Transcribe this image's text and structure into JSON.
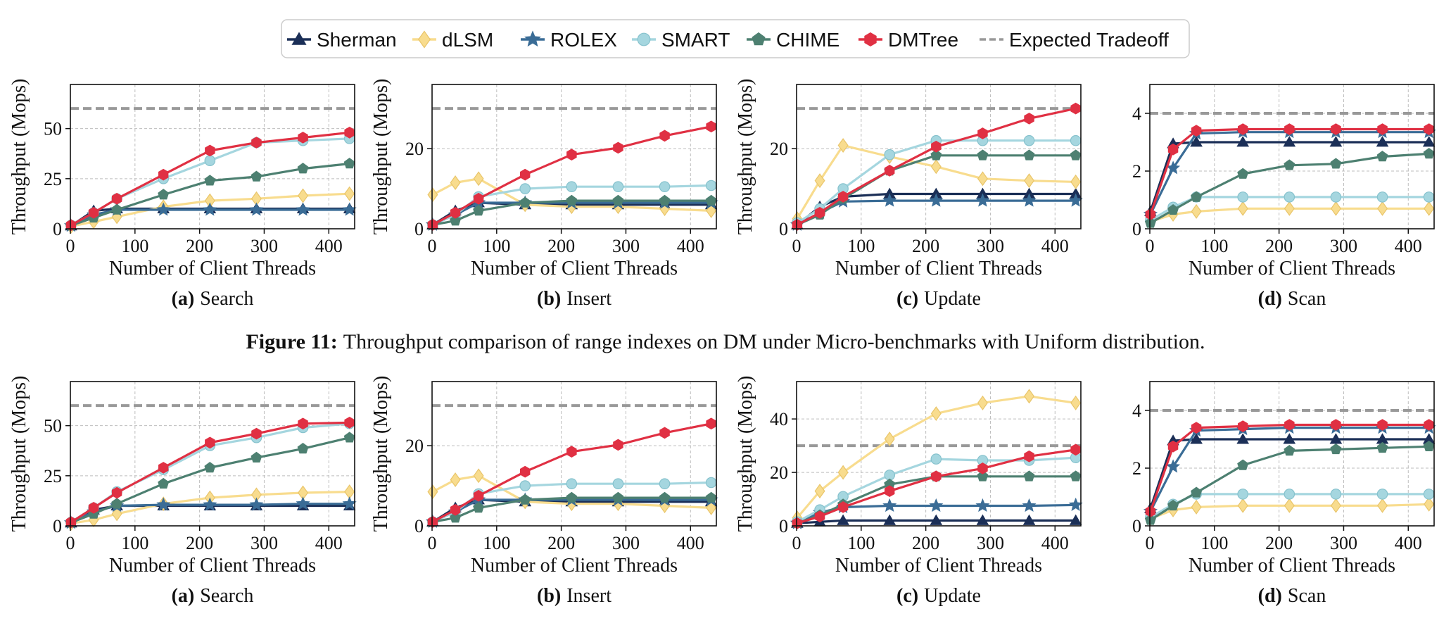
{
  "legend": {
    "items": [
      {
        "name": "Sherman",
        "color": "#1b2f57",
        "marker": "triangle"
      },
      {
        "name": "dLSM",
        "color": "#f8dc8e",
        "marker": "diamond"
      },
      {
        "name": "ROLEX",
        "color": "#3a6c96",
        "marker": "star"
      },
      {
        "name": "SMART",
        "color": "#a5d6df",
        "marker": "circle"
      },
      {
        "name": "CHIME",
        "color": "#4d8071",
        "marker": "pentagon"
      },
      {
        "name": "DMTree",
        "color": "#e03043",
        "marker": "hexagon"
      }
    ],
    "expected": {
      "name": "Expected Tradeoff",
      "color": "#999999"
    }
  },
  "figure_caption": {
    "label": "Figure 11:",
    "text": "Throughput comparison of range indexes on DM under Micro-benchmarks with Uniform distribution."
  },
  "x_values": [
    1,
    36,
    72,
    144,
    216,
    288,
    360,
    432
  ],
  "chart_data": [
    {
      "type": "line",
      "row": 0,
      "col": 0,
      "caption_label": "(a)",
      "caption_text": "Search",
      "xlabel": "Number of Client Threads",
      "ylabel": "Throughput (Mops)",
      "xlim": [
        0,
        440
      ],
      "ylim": [
        0,
        72
      ],
      "yticks": [
        0,
        25,
        50
      ],
      "xticks": [
        0,
        100,
        200,
        300,
        400
      ],
      "expected": 60,
      "series": [
        {
          "name": "Sherman",
          "values": [
            1.5,
            9,
            10,
            10,
            10,
            10,
            10,
            10
          ]
        },
        {
          "name": "dLSM",
          "values": [
            1.2,
            3.5,
            6,
            11,
            14,
            15,
            16.5,
            17.5
          ]
        },
        {
          "name": "ROLEX",
          "values": [
            1.5,
            7,
            9.5,
            9.5,
            9.5,
            9.5,
            9.5,
            9.5
          ]
        },
        {
          "name": "SMART",
          "values": [
            1.8,
            8,
            15,
            25,
            34,
            43,
            44,
            45
          ]
        },
        {
          "name": "CHIME",
          "values": [
            1.6,
            5.5,
            9.5,
            17,
            24,
            26,
            30,
            32.5
          ]
        },
        {
          "name": "DMTree",
          "values": [
            1.8,
            8,
            15,
            27,
            39,
            43,
            45.5,
            48
          ]
        }
      ]
    },
    {
      "type": "line",
      "row": 0,
      "col": 1,
      "caption_label": "(b)",
      "caption_text": "Insert",
      "xlabel": "Number of Client Threads",
      "ylabel": "Throughput (Mops)",
      "xlim": [
        0,
        440
      ],
      "ylim": [
        0,
        36
      ],
      "yticks": [
        0,
        20
      ],
      "xticks": [
        0,
        100,
        200,
        300,
        400
      ],
      "expected": 30,
      "series": [
        {
          "name": "Sherman",
          "values": [
            1,
            4.5,
            6.5,
            6,
            6,
            6,
            6,
            6
          ]
        },
        {
          "name": "dLSM",
          "values": [
            8.5,
            11.5,
            12.5,
            6,
            5.5,
            5.5,
            5,
            4.5
          ]
        },
        {
          "name": "ROLEX",
          "values": [
            1,
            3.5,
            6.5,
            6.5,
            6.5,
            6.5,
            6.5,
            6.5
          ]
        },
        {
          "name": "SMART",
          "values": [
            1,
            3.5,
            8,
            10,
            10.5,
            10.5,
            10.5,
            10.8
          ]
        },
        {
          "name": "CHIME",
          "values": [
            1,
            2,
            4.5,
            6.5,
            7,
            7,
            7,
            7
          ]
        },
        {
          "name": "DMTree",
          "values": [
            1,
            4,
            7.5,
            13.5,
            18.5,
            20.2,
            23.2,
            25.5
          ]
        }
      ]
    },
    {
      "type": "line",
      "row": 0,
      "col": 2,
      "caption_label": "(c)",
      "caption_text": "Update",
      "xlabel": "Number of Client Threads",
      "ylabel": "Throughput (Mops)",
      "xlim": [
        0,
        440
      ],
      "ylim": [
        0,
        36
      ],
      "yticks": [
        0,
        20
      ],
      "xticks": [
        0,
        100,
        200,
        300,
        400
      ],
      "expected": 30,
      "series": [
        {
          "name": "Sherman",
          "values": [
            1,
            5.5,
            8,
            8.7,
            8.7,
            8.7,
            8.7,
            8.7
          ]
        },
        {
          "name": "dLSM",
          "values": [
            2.5,
            12,
            20.8,
            18,
            15.5,
            12.5,
            12,
            11.7
          ]
        },
        {
          "name": "ROLEX",
          "values": [
            1,
            4,
            6.8,
            7,
            7,
            7,
            7,
            7
          ]
        },
        {
          "name": "SMART",
          "values": [
            1.5,
            5,
            10,
            18.5,
            22,
            22,
            22,
            22
          ]
        },
        {
          "name": "CHIME",
          "values": [
            1,
            3.5,
            7.5,
            14.5,
            18.3,
            18.3,
            18.3,
            18.3
          ]
        },
        {
          "name": "DMTree",
          "values": [
            1,
            4,
            8,
            14.5,
            20.5,
            23.8,
            27.5,
            30
          ]
        }
      ]
    },
    {
      "type": "line",
      "row": 0,
      "col": 3,
      "caption_label": "(d)",
      "caption_text": "Scan",
      "xlabel": "Number of Client Threads",
      "ylabel": "",
      "xlim": [
        0,
        440
      ],
      "ylim": [
        0,
        5
      ],
      "yticks": [
        0,
        2,
        4
      ],
      "xticks": [
        0,
        100,
        200,
        300,
        400
      ],
      "expected": 4,
      "series": [
        {
          "name": "Sherman",
          "values": [
            0.6,
            2.95,
            3,
            3,
            3,
            3,
            3,
            3
          ]
        },
        {
          "name": "dLSM",
          "values": [
            0.25,
            0.5,
            0.6,
            0.7,
            0.7,
            0.7,
            0.7,
            0.7
          ]
        },
        {
          "name": "ROLEX",
          "values": [
            0.5,
            2.1,
            3.3,
            3.35,
            3.35,
            3.35,
            3.35,
            3.35
          ]
        },
        {
          "name": "SMART",
          "values": [
            0.3,
            0.75,
            1.1,
            1.1,
            1.1,
            1.1,
            1.1,
            1.1
          ]
        },
        {
          "name": "CHIME",
          "values": [
            0.2,
            0.65,
            1.1,
            1.9,
            2.2,
            2.25,
            2.5,
            2.6
          ]
        },
        {
          "name": "DMTree",
          "values": [
            0.5,
            2.75,
            3.4,
            3.45,
            3.45,
            3.45,
            3.45,
            3.45
          ]
        }
      ]
    },
    {
      "type": "line",
      "row": 1,
      "col": 0,
      "caption_label": "(a)",
      "caption_text": "Search",
      "xlabel": "Number of Client Threads",
      "ylabel": "Throughput (Mops)",
      "xlim": [
        0,
        440
      ],
      "ylim": [
        0,
        72
      ],
      "yticks": [
        0,
        25,
        50
      ],
      "xticks": [
        0,
        100,
        200,
        300,
        400
      ],
      "expected": 60,
      "series": [
        {
          "name": "Sherman",
          "values": [
            1.5,
            8,
            10,
            10,
            10,
            10,
            10,
            10
          ]
        },
        {
          "name": "dLSM",
          "values": [
            1.2,
            3,
            6,
            11,
            14,
            15.5,
            16.5,
            17
          ]
        },
        {
          "name": "ROLEX",
          "values": [
            1.5,
            7,
            10,
            10.5,
            10.5,
            10.5,
            11,
            11
          ]
        },
        {
          "name": "SMART",
          "values": [
            1.8,
            9,
            17,
            28,
            40,
            44,
            49,
            51
          ]
        },
        {
          "name": "CHIME",
          "values": [
            1.6,
            6,
            11,
            21,
            29,
            34,
            38.5,
            44
          ]
        },
        {
          "name": "DMTree",
          "values": [
            1.8,
            9,
            16.5,
            29,
            41.5,
            46,
            51,
            51.5
          ]
        }
      ]
    },
    {
      "type": "line",
      "row": 1,
      "col": 1,
      "caption_label": "(b)",
      "caption_text": "Insert",
      "xlabel": "Number of Client Threads",
      "ylabel": "Throughput (Mops)",
      "xlim": [
        0,
        440
      ],
      "ylim": [
        0,
        36
      ],
      "yticks": [
        0,
        20
      ],
      "xticks": [
        0,
        100,
        200,
        300,
        400
      ],
      "expected": 30,
      "series": [
        {
          "name": "Sherman",
          "values": [
            1,
            4.5,
            6.5,
            6,
            6,
            6,
            6,
            6
          ]
        },
        {
          "name": "dLSM",
          "values": [
            8.5,
            11.5,
            12.5,
            6,
            5.5,
            5.5,
            5,
            4.5
          ]
        },
        {
          "name": "ROLEX",
          "values": [
            1,
            3.5,
            6.5,
            6.5,
            6.5,
            6.5,
            6.5,
            6.5
          ]
        },
        {
          "name": "SMART",
          "values": [
            1,
            3.5,
            8,
            10,
            10.5,
            10.5,
            10.5,
            10.8
          ]
        },
        {
          "name": "CHIME",
          "values": [
            1,
            2,
            4.5,
            6.5,
            7,
            7,
            7,
            7
          ]
        },
        {
          "name": "DMTree",
          "values": [
            1,
            4,
            7.5,
            13.5,
            18.5,
            20.2,
            23.2,
            25.5
          ]
        }
      ]
    },
    {
      "type": "line",
      "row": 1,
      "col": 2,
      "caption_label": "(c)",
      "caption_text": "Update",
      "xlabel": "Number of Client Threads",
      "ylabel": "Throughput (Mops)",
      "xlim": [
        0,
        440
      ],
      "ylim": [
        0,
        54
      ],
      "yticks": [
        0,
        20,
        40
      ],
      "xticks": [
        0,
        100,
        200,
        300,
        400
      ],
      "expected": 30,
      "series": [
        {
          "name": "Sherman",
          "values": [
            1,
            1.5,
            2,
            2,
            2,
            2,
            2,
            2
          ]
        },
        {
          "name": "dLSM",
          "values": [
            3,
            13,
            20,
            32.5,
            42,
            46,
            48.5,
            46
          ]
        },
        {
          "name": "ROLEX",
          "values": [
            1,
            5,
            7,
            7.5,
            7.5,
            7.5,
            7.5,
            7.8
          ]
        },
        {
          "name": "SMART",
          "values": [
            1.5,
            6,
            11,
            19,
            25,
            24.5,
            24.5,
            25.5
          ]
        },
        {
          "name": "CHIME",
          "values": [
            1,
            4,
            8,
            15.5,
            18.5,
            18.5,
            18.5,
            18.5
          ]
        },
        {
          "name": "DMTree",
          "values": [
            1,
            3.5,
            7,
            13,
            18.5,
            21.5,
            26,
            28.5
          ]
        }
      ]
    },
    {
      "type": "line",
      "row": 1,
      "col": 3,
      "caption_label": "(d)",
      "caption_text": "Scan",
      "xlabel": "Number of Client Threads",
      "ylabel": "",
      "xlim": [
        0,
        440
      ],
      "ylim": [
        0,
        5
      ],
      "yticks": [
        0,
        2,
        4
      ],
      "xticks": [
        0,
        100,
        200,
        300,
        400
      ],
      "expected": 4,
      "series": [
        {
          "name": "Sherman",
          "values": [
            0.6,
            2.95,
            3,
            3,
            3,
            3,
            3,
            3
          ]
        },
        {
          "name": "dLSM",
          "values": [
            0.25,
            0.55,
            0.65,
            0.7,
            0.7,
            0.7,
            0.7,
            0.75
          ]
        },
        {
          "name": "ROLEX",
          "values": [
            0.5,
            2.05,
            3.3,
            3.35,
            3.4,
            3.4,
            3.4,
            3.4
          ]
        },
        {
          "name": "SMART",
          "values": [
            0.3,
            0.75,
            1.1,
            1.1,
            1.1,
            1.1,
            1.1,
            1.1
          ]
        },
        {
          "name": "CHIME",
          "values": [
            0.2,
            0.7,
            1.15,
            2.1,
            2.6,
            2.65,
            2.7,
            2.75
          ]
        },
        {
          "name": "DMTree",
          "values": [
            0.5,
            2.75,
            3.4,
            3.45,
            3.5,
            3.5,
            3.5,
            3.5
          ]
        }
      ]
    }
  ]
}
